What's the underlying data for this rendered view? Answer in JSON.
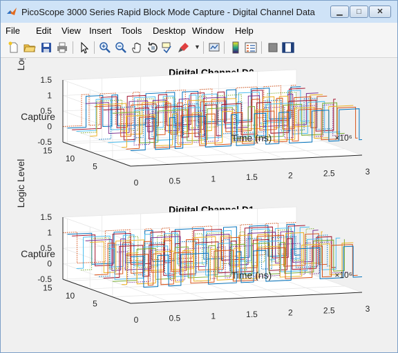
{
  "window": {
    "title": "PicoScope 3000 Series Rapid Block Mode Capture - Digital Channel Data"
  },
  "menu": [
    "File",
    "Edit",
    "View",
    "Insert",
    "Tools",
    "Desktop",
    "Window",
    "Help"
  ],
  "toolbar_icons": [
    "new-figure-icon",
    "open-file-icon",
    "save-icon",
    "print-icon",
    "pointer-icon",
    "zoom-in-icon",
    "zoom-out-icon",
    "pan-icon",
    "rotate-3d-icon",
    "data-cursor-icon",
    "brush-icon",
    "dropdown-arrow-icon",
    "link-plot-icon",
    "colorbar-icon",
    "legend-icon",
    "hide-plot-tools-icon",
    "show-plot-tools-icon"
  ],
  "chart_data": [
    {
      "type": "line",
      "title": "Digital Channel D0",
      "xlabel": "Time (ns)",
      "ylabel": "Capture",
      "zlabel": "Logic Level",
      "x_ticks": [
        "0",
        "0.5",
        "1",
        "1.5",
        "2",
        "2.5",
        "3"
      ],
      "x_multiplier": "×10⁶",
      "y_ticks": [
        "5",
        "10",
        "15"
      ],
      "z_ticks": [
        "1.5",
        "1",
        "0.5",
        "0",
        "-0.5"
      ],
      "xlim": [
        0,
        3000000
      ],
      "ylim": [
        1,
        16
      ],
      "zlim": [
        -0.5,
        1.5
      ],
      "grid": true,
      "series_count": 16,
      "levels": [
        0,
        1
      ]
    },
    {
      "type": "line",
      "title": "Digital Channel D1",
      "xlabel": "Time (ns)",
      "ylabel": "Capture",
      "zlabel": "Logic Level",
      "x_ticks": [
        "0",
        "0.5",
        "1",
        "1.5",
        "2",
        "2.5",
        "3"
      ],
      "x_multiplier": "×10⁶",
      "y_ticks": [
        "5",
        "10",
        "15"
      ],
      "z_ticks": [
        "1.5",
        "1",
        "0.5",
        "0",
        "-0.5"
      ],
      "xlim": [
        0,
        3000000
      ],
      "ylim": [
        1,
        16
      ],
      "zlim": [
        -0.5,
        1.5
      ],
      "grid": true,
      "series_count": 16,
      "levels": [
        0,
        1
      ]
    }
  ],
  "colors": [
    "#0072bd",
    "#d95319",
    "#edb120",
    "#7e2f8e",
    "#77ac30",
    "#4dbeee",
    "#a2142f"
  ]
}
